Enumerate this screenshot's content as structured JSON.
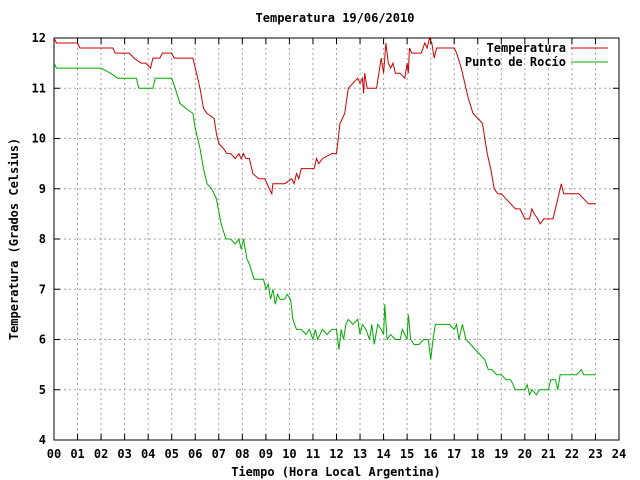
{
  "chart_data": {
    "type": "line",
    "title": "Temperatura 19/06/2010",
    "xlabel": "Tiempo (Hora Local Argentina)",
    "ylabel": "Temperatura (Grados Celsius)",
    "xlim": [
      0,
      24
    ],
    "ylim": [
      4,
      12
    ],
    "grid": true,
    "legend_position": "top-right",
    "x_ticks": [
      "00",
      "01",
      "02",
      "03",
      "04",
      "05",
      "06",
      "07",
      "08",
      "09",
      "10",
      "11",
      "12",
      "13",
      "14",
      "15",
      "16",
      "17",
      "18",
      "19",
      "20",
      "21",
      "22",
      "23",
      "24"
    ],
    "y_ticks": [
      "4",
      "5",
      "6",
      "7",
      "8",
      "9",
      "10",
      "11",
      "12"
    ],
    "series": [
      {
        "name": "Temperatura",
        "color": "#cc0000",
        "points": [
          [
            0.0,
            12.0
          ],
          [
            0.1,
            11.9
          ],
          [
            0.5,
            11.9
          ],
          [
            1.0,
            11.9
          ],
          [
            1.1,
            11.8
          ],
          [
            1.5,
            11.8
          ],
          [
            2.0,
            11.8
          ],
          [
            2.5,
            11.8
          ],
          [
            2.6,
            11.7
          ],
          [
            3.0,
            11.7
          ],
          [
            3.2,
            11.7
          ],
          [
            3.4,
            11.6
          ],
          [
            3.7,
            11.5
          ],
          [
            3.9,
            11.5
          ],
          [
            4.1,
            11.4
          ],
          [
            4.2,
            11.6
          ],
          [
            4.5,
            11.6
          ],
          [
            4.6,
            11.7
          ],
          [
            5.0,
            11.7
          ],
          [
            5.1,
            11.6
          ],
          [
            5.3,
            11.6
          ],
          [
            5.6,
            11.6
          ],
          [
            5.9,
            11.6
          ],
          [
            6.0,
            11.4
          ],
          [
            6.2,
            11.0
          ],
          [
            6.35,
            10.6
          ],
          [
            6.5,
            10.5
          ],
          [
            6.8,
            10.4
          ],
          [
            6.9,
            10.1
          ],
          [
            7.0,
            9.9
          ],
          [
            7.2,
            9.8
          ],
          [
            7.35,
            9.7
          ],
          [
            7.5,
            9.7
          ],
          [
            7.7,
            9.6
          ],
          [
            7.85,
            9.7
          ],
          [
            7.95,
            9.6
          ],
          [
            8.05,
            9.7
          ],
          [
            8.15,
            9.6
          ],
          [
            8.3,
            9.6
          ],
          [
            8.45,
            9.3
          ],
          [
            8.7,
            9.2
          ],
          [
            8.95,
            9.2
          ],
          [
            9.05,
            9.1
          ],
          [
            9.15,
            9.0
          ],
          [
            9.25,
            8.9
          ],
          [
            9.3,
            9.1
          ],
          [
            9.5,
            9.1
          ],
          [
            9.8,
            9.1
          ],
          [
            10.1,
            9.2
          ],
          [
            10.2,
            9.1
          ],
          [
            10.3,
            9.3
          ],
          [
            10.4,
            9.2
          ],
          [
            10.5,
            9.4
          ],
          [
            10.7,
            9.4
          ],
          [
            10.9,
            9.4
          ],
          [
            11.05,
            9.4
          ],
          [
            11.15,
            9.6
          ],
          [
            11.25,
            9.5
          ],
          [
            11.4,
            9.6
          ],
          [
            11.8,
            9.7
          ],
          [
            12.0,
            9.7
          ],
          [
            12.05,
            9.9
          ],
          [
            12.15,
            10.3
          ],
          [
            12.25,
            10.4
          ],
          [
            12.35,
            10.5
          ],
          [
            12.5,
            11.0
          ],
          [
            12.7,
            11.1
          ],
          [
            12.9,
            11.2
          ],
          [
            13.0,
            11.1
          ],
          [
            13.1,
            11.2
          ],
          [
            13.15,
            10.9
          ],
          [
            13.2,
            11.3
          ],
          [
            13.3,
            11.0
          ],
          [
            13.5,
            11.0
          ],
          [
            13.7,
            11.0
          ],
          [
            13.8,
            11.3
          ],
          [
            13.9,
            11.6
          ],
          [
            14.0,
            11.3
          ],
          [
            14.1,
            11.9
          ],
          [
            14.2,
            11.5
          ],
          [
            14.3,
            11.4
          ],
          [
            14.4,
            11.5
          ],
          [
            14.5,
            11.3
          ],
          [
            14.7,
            11.3
          ],
          [
            14.9,
            11.2
          ],
          [
            15.0,
            11.5
          ],
          [
            15.05,
            11.3
          ],
          [
            15.1,
            11.8
          ],
          [
            15.2,
            11.7
          ],
          [
            15.4,
            11.7
          ],
          [
            15.6,
            11.7
          ],
          [
            15.75,
            11.9
          ],
          [
            15.85,
            11.8
          ],
          [
            15.95,
            12.0
          ],
          [
            16.05,
            11.9
          ],
          [
            16.15,
            11.6
          ],
          [
            16.25,
            11.8
          ],
          [
            16.5,
            11.8
          ],
          [
            16.8,
            11.8
          ],
          [
            17.0,
            11.8
          ],
          [
            17.1,
            11.7
          ],
          [
            17.3,
            11.4
          ],
          [
            17.6,
            10.8
          ],
          [
            17.8,
            10.5
          ],
          [
            18.0,
            10.4
          ],
          [
            18.2,
            10.3
          ],
          [
            18.3,
            10.0
          ],
          [
            18.4,
            9.7
          ],
          [
            18.55,
            9.4
          ],
          [
            18.7,
            9.0
          ],
          [
            18.85,
            8.9
          ],
          [
            19.0,
            8.9
          ],
          [
            19.2,
            8.8
          ],
          [
            19.4,
            8.7
          ],
          [
            19.6,
            8.6
          ],
          [
            19.8,
            8.6
          ],
          [
            20.0,
            8.4
          ],
          [
            20.2,
            8.4
          ],
          [
            20.3,
            8.6
          ],
          [
            20.4,
            8.5
          ],
          [
            20.55,
            8.4
          ],
          [
            20.65,
            8.3
          ],
          [
            20.8,
            8.4
          ],
          [
            21.0,
            8.4
          ],
          [
            21.2,
            8.4
          ],
          [
            21.3,
            8.6
          ],
          [
            21.45,
            8.9
          ],
          [
            21.55,
            9.1
          ],
          [
            21.65,
            8.9
          ],
          [
            22.0,
            8.9
          ],
          [
            22.3,
            8.9
          ],
          [
            22.5,
            8.8
          ],
          [
            22.7,
            8.7
          ],
          [
            23.0,
            8.7
          ]
        ]
      },
      {
        "name": "Punto de Rocío",
        "color": "#00aa00",
        "points": [
          [
            0.0,
            11.5
          ],
          [
            0.1,
            11.4
          ],
          [
            0.5,
            11.4
          ],
          [
            1.0,
            11.4
          ],
          [
            1.5,
            11.4
          ],
          [
            2.0,
            11.4
          ],
          [
            2.4,
            11.3
          ],
          [
            2.7,
            11.2
          ],
          [
            3.0,
            11.2
          ],
          [
            3.5,
            11.2
          ],
          [
            3.6,
            11.0
          ],
          [
            4.0,
            11.0
          ],
          [
            4.2,
            11.0
          ],
          [
            4.3,
            11.2
          ],
          [
            4.7,
            11.2
          ],
          [
            5.0,
            11.2
          ],
          [
            5.15,
            11.0
          ],
          [
            5.35,
            10.7
          ],
          [
            5.6,
            10.6
          ],
          [
            5.9,
            10.5
          ],
          [
            6.0,
            10.2
          ],
          [
            6.2,
            9.8
          ],
          [
            6.35,
            9.4
          ],
          [
            6.5,
            9.1
          ],
          [
            6.7,
            9.0
          ],
          [
            6.9,
            8.8
          ],
          [
            7.1,
            8.3
          ],
          [
            7.3,
            8.0
          ],
          [
            7.5,
            8.0
          ],
          [
            7.7,
            7.9
          ],
          [
            7.85,
            8.0
          ],
          [
            7.95,
            7.8
          ],
          [
            8.05,
            8.0
          ],
          [
            8.2,
            7.6
          ],
          [
            8.3,
            7.5
          ],
          [
            8.5,
            7.2
          ],
          [
            8.7,
            7.2
          ],
          [
            8.9,
            7.2
          ],
          [
            9.0,
            7.0
          ],
          [
            9.1,
            7.1
          ],
          [
            9.2,
            6.8
          ],
          [
            9.3,
            7.0
          ],
          [
            9.4,
            6.7
          ],
          [
            9.5,
            6.9
          ],
          [
            9.6,
            6.8
          ],
          [
            9.8,
            6.8
          ],
          [
            9.9,
            6.9
          ],
          [
            10.05,
            6.8
          ],
          [
            10.15,
            6.4
          ],
          [
            10.3,
            6.2
          ],
          [
            10.5,
            6.2
          ],
          [
            10.7,
            6.1
          ],
          [
            10.85,
            6.2
          ],
          [
            11.0,
            6.0
          ],
          [
            11.1,
            6.2
          ],
          [
            11.2,
            6.0
          ],
          [
            11.4,
            6.2
          ],
          [
            11.6,
            6.1
          ],
          [
            11.8,
            6.2
          ],
          [
            12.0,
            6.2
          ],
          [
            12.1,
            5.8
          ],
          [
            12.2,
            6.2
          ],
          [
            12.3,
            6.0
          ],
          [
            12.4,
            6.3
          ],
          [
            12.5,
            6.4
          ],
          [
            12.7,
            6.3
          ],
          [
            12.9,
            6.4
          ],
          [
            13.0,
            6.1
          ],
          [
            13.1,
            6.3
          ],
          [
            13.25,
            6.2
          ],
          [
            13.4,
            6.0
          ],
          [
            13.5,
            6.3
          ],
          [
            13.6,
            5.9
          ],
          [
            13.75,
            6.3
          ],
          [
            13.9,
            6.2
          ],
          [
            14.0,
            6.1
          ],
          [
            14.05,
            6.7
          ],
          [
            14.15,
            6.0
          ],
          [
            14.3,
            6.1
          ],
          [
            14.5,
            6.0
          ],
          [
            14.7,
            6.0
          ],
          [
            14.8,
            6.2
          ],
          [
            14.9,
            6.1
          ],
          [
            15.0,
            6.0
          ],
          [
            15.05,
            6.5
          ],
          [
            15.15,
            6.0
          ],
          [
            15.3,
            5.9
          ],
          [
            15.5,
            5.9
          ],
          [
            15.7,
            6.0
          ],
          [
            15.9,
            6.0
          ],
          [
            16.0,
            5.6
          ],
          [
            16.1,
            6.0
          ],
          [
            16.2,
            6.3
          ],
          [
            16.4,
            6.3
          ],
          [
            16.6,
            6.3
          ],
          [
            16.8,
            6.3
          ],
          [
            17.0,
            6.2
          ],
          [
            17.1,
            6.3
          ],
          [
            17.2,
            6.0
          ],
          [
            17.35,
            6.3
          ],
          [
            17.5,
            6.0
          ],
          [
            17.7,
            5.9
          ],
          [
            17.9,
            5.8
          ],
          [
            18.1,
            5.7
          ],
          [
            18.3,
            5.6
          ],
          [
            18.45,
            5.4
          ],
          [
            18.6,
            5.4
          ],
          [
            18.8,
            5.3
          ],
          [
            19.0,
            5.3
          ],
          [
            19.2,
            5.2
          ],
          [
            19.4,
            5.2
          ],
          [
            19.6,
            5.0
          ],
          [
            19.8,
            5.0
          ],
          [
            20.0,
            5.0
          ],
          [
            20.1,
            5.1
          ],
          [
            20.2,
            4.9
          ],
          [
            20.3,
            5.0
          ],
          [
            20.5,
            4.9
          ],
          [
            20.6,
            5.0
          ],
          [
            20.8,
            5.0
          ],
          [
            21.0,
            5.0
          ],
          [
            21.1,
            5.2
          ],
          [
            21.3,
            5.2
          ],
          [
            21.4,
            5.0
          ],
          [
            21.5,
            5.3
          ],
          [
            21.7,
            5.3
          ],
          [
            22.0,
            5.3
          ],
          [
            22.2,
            5.3
          ],
          [
            22.4,
            5.4
          ],
          [
            22.5,
            5.3
          ],
          [
            22.8,
            5.3
          ],
          [
            23.0,
            5.3
          ]
        ]
      }
    ]
  }
}
